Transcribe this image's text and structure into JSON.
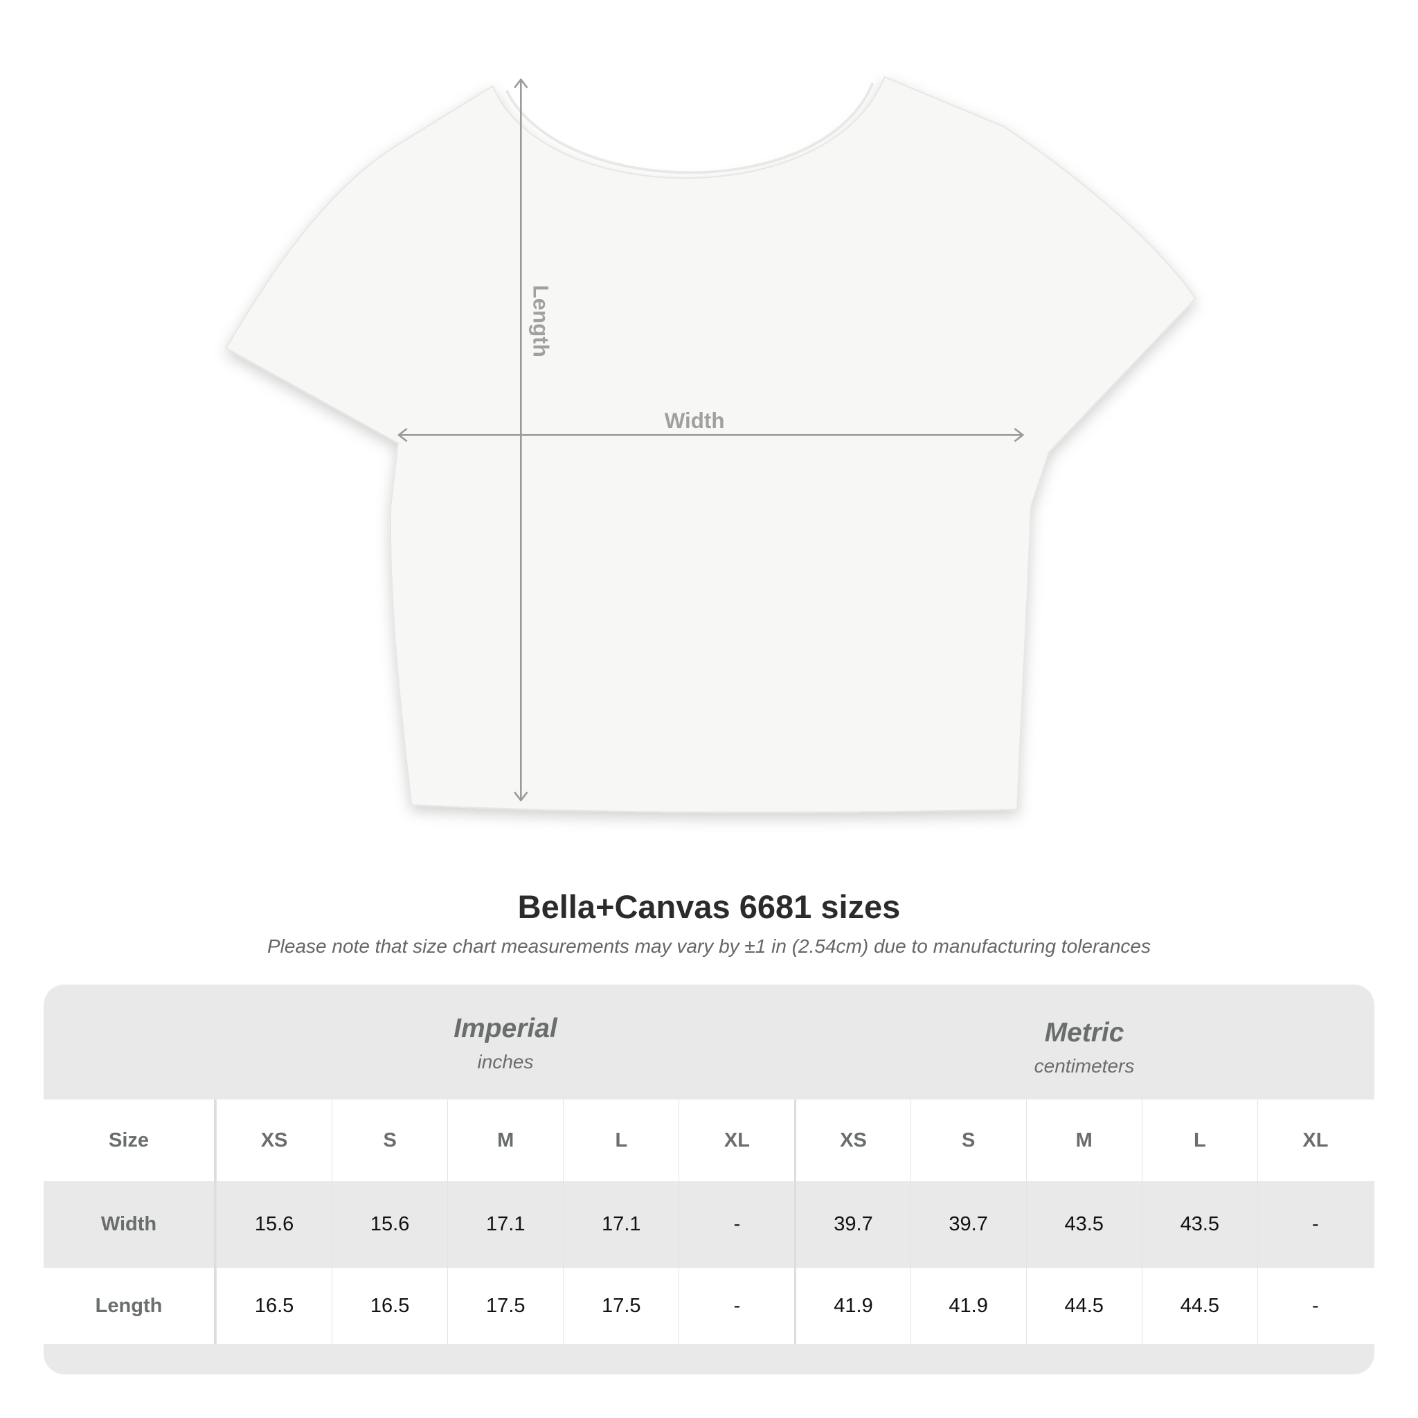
{
  "diagram": {
    "length_label": "Length",
    "width_label": "Width"
  },
  "title": "Bella+Canvas 6681 sizes",
  "note": "Please note that size chart measurements may vary by ±1 in (2.54cm) due to manufacturing tolerances",
  "table": {
    "imperial": {
      "title": "Imperial",
      "unit": "inches"
    },
    "metric": {
      "title": "Metric",
      "unit": "centimeters"
    },
    "header": [
      "Size",
      "XS",
      "S",
      "M",
      "L",
      "XL",
      "XS",
      "S",
      "M",
      "L",
      "XL"
    ],
    "rows": [
      [
        "Width",
        "15.6",
        "15.6",
        "17.1",
        "17.1",
        "-",
        "39.7",
        "39.7",
        "43.5",
        "43.5",
        "-"
      ],
      [
        "Length",
        "16.5",
        "16.5",
        "17.5",
        "17.5",
        "-",
        "41.9",
        "41.9",
        "44.5",
        "44.5",
        "-"
      ]
    ]
  }
}
